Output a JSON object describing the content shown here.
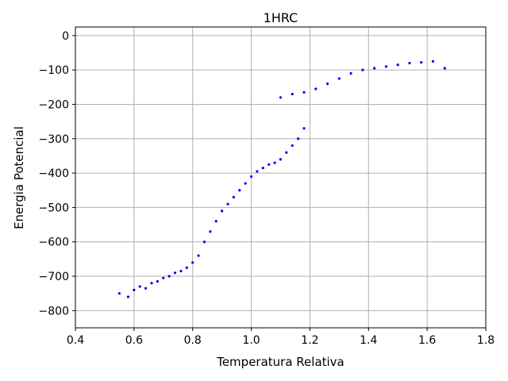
{
  "chart_data": {
    "type": "scatter",
    "title": "1HRC",
    "xlabel": "Temperatura Relativa",
    "ylabel": "Energia Potencial",
    "xlim": [
      0.4,
      1.8
    ],
    "ylim": [
      -850,
      25
    ],
    "xticks": [
      0.4,
      0.6,
      0.8,
      1.0,
      1.2,
      1.4,
      1.6,
      1.8
    ],
    "xtick_labels": [
      "0.4",
      "0.6",
      "0.8",
      "1.0",
      "1.2",
      "1.4",
      "1.6",
      "1.8"
    ],
    "yticks": [
      0,
      -100,
      -200,
      -300,
      -400,
      -500,
      -600,
      -700,
      -800
    ],
    "ytick_labels": [
      "0",
      "−100",
      "−200",
      "−300",
      "−400",
      "−500",
      "−600",
      "−700",
      "−800"
    ],
    "grid": true,
    "marker_color": "#0000ff",
    "series": [
      {
        "points": [
          [
            0.55,
            -750
          ],
          [
            0.58,
            -760
          ],
          [
            0.6,
            -740
          ],
          [
            0.62,
            -730
          ],
          [
            0.64,
            -735
          ],
          [
            0.66,
            -720
          ],
          [
            0.68,
            -715
          ],
          [
            0.7,
            -705
          ],
          [
            0.72,
            -700
          ],
          [
            0.74,
            -690
          ],
          [
            0.76,
            -685
          ],
          [
            0.78,
            -675
          ],
          [
            0.8,
            -660
          ],
          [
            0.82,
            -640
          ],
          [
            0.84,
            -600
          ],
          [
            0.86,
            -570
          ],
          [
            0.88,
            -540
          ],
          [
            0.9,
            -510
          ],
          [
            0.92,
            -490
          ],
          [
            0.94,
            -470
          ],
          [
            0.96,
            -450
          ],
          [
            0.98,
            -430
          ],
          [
            1.0,
            -410
          ],
          [
            1.02,
            -395
          ],
          [
            1.04,
            -385
          ],
          [
            1.06,
            -375
          ],
          [
            1.08,
            -370
          ],
          [
            1.1,
            -360
          ],
          [
            1.12,
            -340
          ],
          [
            1.14,
            -320
          ],
          [
            1.16,
            -300
          ],
          [
            1.18,
            -270
          ],
          [
            1.1,
            -180
          ],
          [
            1.14,
            -170
          ],
          [
            1.18,
            -165
          ],
          [
            1.22,
            -155
          ],
          [
            1.26,
            -140
          ],
          [
            1.3,
            -125
          ],
          [
            1.34,
            -110
          ],
          [
            1.38,
            -100
          ],
          [
            1.42,
            -95
          ],
          [
            1.46,
            -90
          ],
          [
            1.5,
            -85
          ],
          [
            1.54,
            -80
          ],
          [
            1.58,
            -78
          ],
          [
            1.62,
            -75
          ],
          [
            1.66,
            -95
          ]
        ]
      }
    ]
  }
}
